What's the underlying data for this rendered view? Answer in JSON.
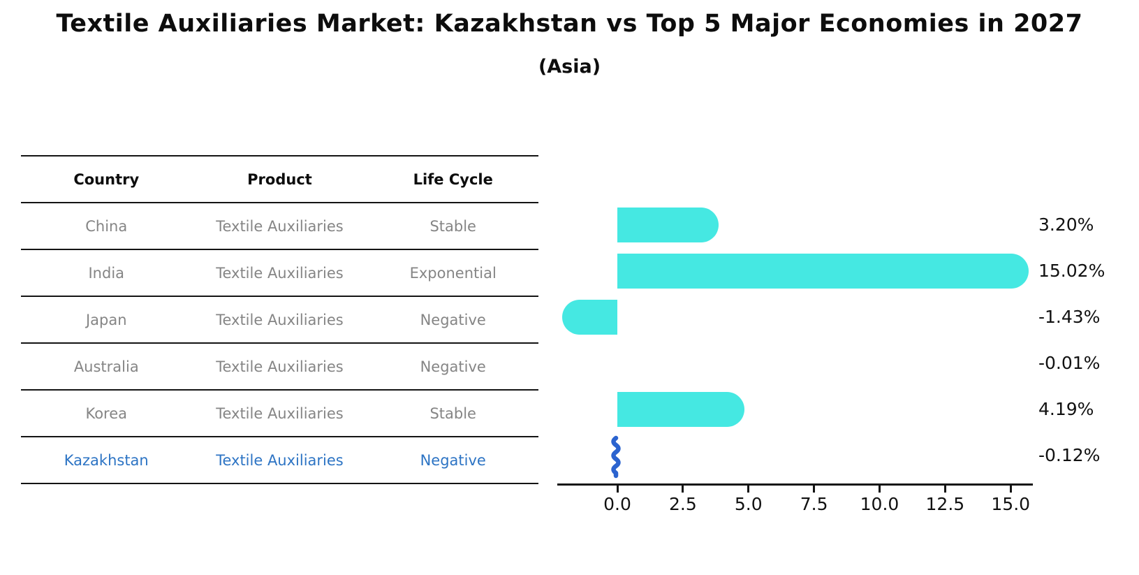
{
  "title": "Textile Auxiliaries Market: Kazakhstan vs Top 5 Major Economies in 2027",
  "subtitle": "(Asia)",
  "table": {
    "headers": {
      "country": "Country",
      "product": "Product",
      "life_cycle": "Life Cycle"
    },
    "rows": [
      {
        "country": "China",
        "product": "Textile Auxiliaries",
        "life_cycle": "Stable",
        "highlighted": false
      },
      {
        "country": "India",
        "product": "Textile Auxiliaries",
        "life_cycle": "Exponential",
        "highlighted": false
      },
      {
        "country": "Japan",
        "product": "Textile Auxiliaries",
        "life_cycle": "Negative",
        "highlighted": false
      },
      {
        "country": "Australia",
        "product": "Textile Auxiliaries",
        "life_cycle": "Negative",
        "highlighted": false
      },
      {
        "country": "Korea",
        "product": "Textile Auxiliaries",
        "life_cycle": "Stable",
        "highlighted": false
      },
      {
        "country": "Kazakhstan",
        "product": "Textile Auxiliaries",
        "life_cycle": "Negative",
        "highlighted": true
      }
    ]
  },
  "chart_data": {
    "type": "bar",
    "orientation": "horizontal",
    "categories": [
      "China",
      "India",
      "Japan",
      "Australia",
      "Korea",
      "Kazakhstan"
    ],
    "values": [
      3.2,
      15.02,
      -1.43,
      -0.01,
      4.19,
      -0.12
    ],
    "value_labels": [
      "3.20%",
      "15.02%",
      "-1.43%",
      "-0.01%",
      "4.19%",
      "-0.12%"
    ],
    "x_ticks": [
      "0.0",
      "2.5",
      "5.0",
      "7.5",
      "10.0",
      "12.5",
      "15.0"
    ],
    "x_tick_values": [
      0,
      2.5,
      5,
      7.5,
      10,
      12.5,
      15
    ],
    "xlim": [
      -2.3,
      15.8
    ],
    "grid": false,
    "legend": "none",
    "bar_color": "#45e8e2",
    "highlight_color": "#2b63cf",
    "highlight_index": 5,
    "title": "Textile Auxiliaries Market: Kazakhstan vs Top 5 Major Economies in 2027",
    "subtitle": "(Asia)",
    "xlabel": "",
    "ylabel": ""
  },
  "colors": {
    "text_black": "#0d0d0d",
    "text_gray": "#858585",
    "text_blue": "#2d74c4",
    "bar_cyan": "#45e8e2",
    "squiggle_blue": "#2b63cf"
  }
}
